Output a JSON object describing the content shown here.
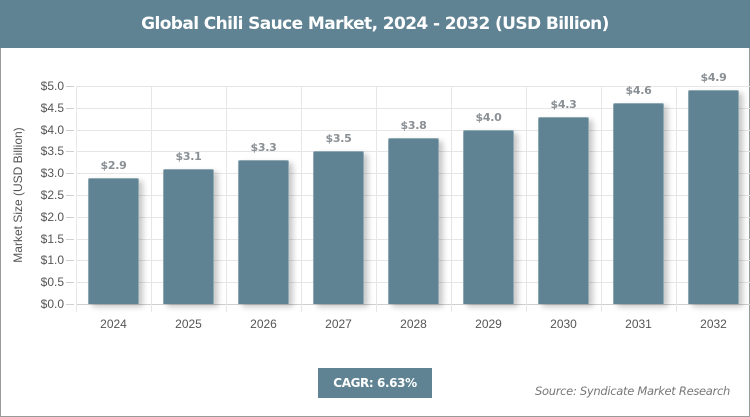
{
  "header": {
    "title": "Global Chili Sauce Market, 2024 - 2032 (USD Billion)"
  },
  "colors": {
    "bar": "#5f8393",
    "header": "#5f8393",
    "label": "#8a8f94"
  },
  "footer": {
    "cagr_label": "CAGR: 6.63%",
    "source": "Source: Syndicate Market Research"
  },
  "chart_data": {
    "type": "bar",
    "title": "Global Chili Sauce Market, 2024 - 2032 (USD Billion)",
    "xlabel": "",
    "ylabel": "Market Size (USD Billion)",
    "categories": [
      "2024",
      "2025",
      "2026",
      "2027",
      "2028",
      "2029",
      "2030",
      "2031",
      "2032"
    ],
    "values": [
      2.9,
      3.1,
      3.3,
      3.5,
      3.8,
      4.0,
      4.3,
      4.6,
      4.9
    ],
    "value_labels": [
      "$2.9",
      "$3.1",
      "$3.3",
      "$3.5",
      "$3.8",
      "$4.0",
      "$4.3",
      "$4.6",
      "$4.9"
    ],
    "ylim": [
      0,
      5
    ],
    "yticks": [
      "$0.0",
      "$0.5",
      "$1.0",
      "$1.5",
      "$2.0",
      "$2.5",
      "$3.0",
      "$3.5",
      "$4.0",
      "$4.5",
      "$5.0"
    ],
    "grid": true,
    "legend": null,
    "annotations": [
      "CAGR: 6.63%",
      "Source: Syndicate Market Research"
    ]
  }
}
